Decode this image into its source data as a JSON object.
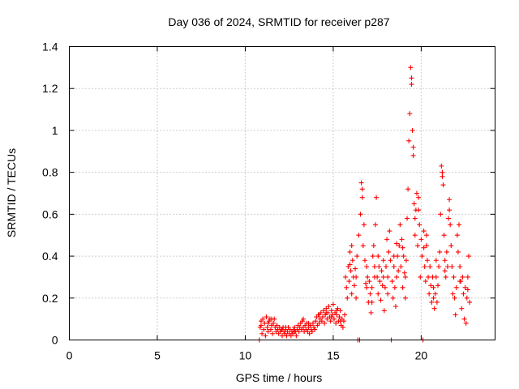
{
  "chart_data": {
    "type": "scatter",
    "title": "Day 036 of 2024, SRMTID for receiver p287",
    "xlabel": "GPS time / hours",
    "ylabel": "SRMTID / TECUs",
    "xlim": [
      0,
      24.2
    ],
    "ylim": [
      0,
      1.4
    ],
    "xticks": [
      0,
      5,
      10,
      15,
      20
    ],
    "xtick_labels": [
      "0",
      "5",
      "10",
      "15",
      "20"
    ],
    "yticks": [
      0,
      0.2,
      0.4,
      0.6,
      0.8,
      1.0,
      1.2,
      1.4
    ],
    "ytick_labels": [
      "0",
      "0.2",
      "0.4",
      "0.6",
      "0.8",
      "1",
      "1.2",
      "1.4"
    ],
    "grid": true,
    "marker": "+",
    "color": "#ff0000",
    "series": [
      {
        "name": "SRMTID",
        "points": [
          [
            10.8,
            0.0
          ],
          [
            10.85,
            0.06
          ],
          [
            10.9,
            0.09
          ],
          [
            10.95,
            0.03
          ],
          [
            11.0,
            0.1
          ],
          [
            11.05,
            0.05
          ],
          [
            11.1,
            0.08
          ],
          [
            11.15,
            0.02
          ],
          [
            11.2,
            0.11
          ],
          [
            11.25,
            0.06
          ],
          [
            11.3,
            0.04
          ],
          [
            11.35,
            0.09
          ],
          [
            11.4,
            0.1
          ],
          [
            11.45,
            0.05
          ],
          [
            11.5,
            0.07
          ],
          [
            11.55,
            0.03
          ],
          [
            11.6,
            0.08
          ],
          [
            11.65,
            0.1
          ],
          [
            11.7,
            0.06
          ],
          [
            11.75,
            0.04
          ],
          [
            11.8,
            0.07
          ],
          [
            11.85,
            0.05
          ],
          [
            11.9,
            0.03
          ],
          [
            11.95,
            0.06
          ],
          [
            12.0,
            0.04
          ],
          [
            12.05,
            0.05
          ],
          [
            12.1,
            0.02
          ],
          [
            12.15,
            0.06
          ],
          [
            12.2,
            0.04
          ],
          [
            12.25,
            0.03
          ],
          [
            12.3,
            0.05
          ],
          [
            12.35,
            0.02
          ],
          [
            12.4,
            0.04
          ],
          [
            12.45,
            0.06
          ],
          [
            12.5,
            0.03
          ],
          [
            12.55,
            0.05
          ],
          [
            12.6,
            0.02
          ],
          [
            12.65,
            0.04
          ],
          [
            12.7,
            0.03
          ],
          [
            12.75,
            0.05
          ],
          [
            12.8,
            0.06
          ],
          [
            12.85,
            0.04
          ],
          [
            12.9,
            0.02
          ],
          [
            12.95,
            0.05
          ],
          [
            13.0,
            0.07
          ],
          [
            13.05,
            0.04
          ],
          [
            13.1,
            0.06
          ],
          [
            13.15,
            0.08
          ],
          [
            13.2,
            0.05
          ],
          [
            13.25,
            0.09
          ],
          [
            13.3,
            0.06
          ],
          [
            13.35,
            0.04
          ],
          [
            13.4,
            0.07
          ],
          [
            13.45,
            0.05
          ],
          [
            13.5,
            0.08
          ],
          [
            13.55,
            0.04
          ],
          [
            13.6,
            0.06
          ],
          [
            13.65,
            0.03
          ],
          [
            13.7,
            0.07
          ],
          [
            13.75,
            0.05
          ],
          [
            13.8,
            0.04
          ],
          [
            13.85,
            0.08
          ],
          [
            13.9,
            0.06
          ],
          [
            13.95,
            0.05
          ],
          [
            14.0,
            0.09
          ],
          [
            14.05,
            0.11
          ],
          [
            14.1,
            0.07
          ],
          [
            14.15,
            0.12
          ],
          [
            14.2,
            0.08
          ],
          [
            14.25,
            0.1
          ],
          [
            14.3,
            0.13
          ],
          [
            14.35,
            0.09
          ],
          [
            14.4,
            0.11
          ],
          [
            14.45,
            0.14
          ],
          [
            14.5,
            0.08
          ],
          [
            14.55,
            0.12
          ],
          [
            14.6,
            0.15
          ],
          [
            14.65,
            0.1
          ],
          [
            14.7,
            0.13
          ],
          [
            14.75,
            0.16
          ],
          [
            14.8,
            0.11
          ],
          [
            14.85,
            0.09
          ],
          [
            14.9,
            0.14
          ],
          [
            14.95,
            0.12
          ],
          [
            15.0,
            0.17
          ],
          [
            15.05,
            0.1
          ],
          [
            15.1,
            0.13
          ],
          [
            15.15,
            0.08
          ],
          [
            15.2,
            0.12
          ],
          [
            15.25,
            0.15
          ],
          [
            15.3,
            0.09
          ],
          [
            15.35,
            0.11
          ],
          [
            15.4,
            0.14
          ],
          [
            15.45,
            0.07
          ],
          [
            15.5,
            0.1
          ],
          [
            15.55,
            0.06
          ],
          [
            15.6,
            0.09
          ],
          [
            15.65,
            0.12
          ],
          [
            15.7,
            0.3
          ],
          [
            15.75,
            0.25
          ],
          [
            15.8,
            0.2
          ],
          [
            15.85,
            0.35
          ],
          [
            15.9,
            0.28
          ],
          [
            15.95,
            0.42
          ],
          [
            16.0,
            0.33
          ],
          [
            16.05,
            0.22
          ],
          [
            16.1,
            0.38
          ],
          [
            16.15,
            0.3
          ],
          [
            16.2,
            0.26
          ],
          [
            16.25,
            0.34
          ],
          [
            16.3,
            0.2
          ],
          [
            16.35,
            0.4
          ],
          [
            16.4,
            0.0
          ],
          [
            16.45,
            0.5
          ],
          [
            16.5,
            0.0
          ],
          [
            16.55,
            0.6
          ],
          [
            16.6,
            0.75
          ],
          [
            16.65,
            0.72
          ],
          [
            16.7,
            0.45
          ],
          [
            16.75,
            0.55
          ],
          [
            16.8,
            0.38
          ],
          [
            16.85,
            0.27
          ],
          [
            16.9,
            0.35
          ],
          [
            16.95,
            0.3
          ],
          [
            17.0,
            0.18
          ],
          [
            17.05,
            0.28
          ],
          [
            17.1,
            0.22
          ],
          [
            17.15,
            0.13
          ],
          [
            17.2,
            0.25
          ],
          [
            17.25,
            0.4
          ],
          [
            17.3,
            0.45
          ],
          [
            17.35,
            0.35
          ],
          [
            17.4,
            0.55
          ],
          [
            17.45,
            0.68
          ],
          [
            17.5,
            0.3
          ],
          [
            17.55,
            0.22
          ],
          [
            17.6,
            0.35
          ],
          [
            17.65,
            0.28
          ],
          [
            17.7,
            0.19
          ],
          [
            17.75,
            0.33
          ],
          [
            17.8,
            0.26
          ],
          [
            17.85,
            0.38
          ],
          [
            17.9,
            0.14
          ],
          [
            17.95,
            0.25
          ],
          [
            18.0,
            0.35
          ],
          [
            18.05,
            0.48
          ],
          [
            18.1,
            0.3
          ],
          [
            18.15,
            0.42
          ],
          [
            18.2,
            0.52
          ],
          [
            18.25,
            0.38
          ],
          [
            18.3,
            0.0
          ],
          [
            18.35,
            0.28
          ],
          [
            18.4,
            0.2
          ],
          [
            18.45,
            0.35
          ],
          [
            18.5,
            0.25
          ],
          [
            18.55,
            0.16
          ],
          [
            18.6,
            0.3
          ],
          [
            18.65,
            0.4
          ],
          [
            18.7,
            0.33
          ],
          [
            18.75,
            0.45
          ],
          [
            18.8,
            0.55
          ],
          [
            18.85,
            0.35
          ],
          [
            18.9,
            0.48
          ],
          [
            18.95,
            0.25
          ],
          [
            19.0,
            0.4
          ],
          [
            19.05,
            0.32
          ],
          [
            19.1,
            0.2
          ],
          [
            19.15,
            0.38
          ],
          [
            19.2,
            0.58
          ],
          [
            19.25,
            0.72
          ],
          [
            19.3,
            0.95
          ],
          [
            19.35,
            1.08
          ],
          [
            19.4,
            1.3
          ],
          [
            19.45,
            1.22
          ],
          [
            19.5,
            1.0
          ],
          [
            19.55,
            0.88
          ],
          [
            19.6,
            0.65
          ],
          [
            19.65,
            0.5
          ],
          [
            19.7,
            0.62
          ],
          [
            19.75,
            0.7
          ],
          [
            19.8,
            0.45
          ],
          [
            19.85,
            0.68
          ],
          [
            19.9,
            0.55
          ],
          [
            19.95,
            0.3
          ],
          [
            20.0,
            0.48
          ],
          [
            20.05,
            0.4
          ],
          [
            20.1,
            0.0
          ],
          [
            20.15,
            0.52
          ],
          [
            20.2,
            0.35
          ],
          [
            20.25,
            0.28
          ],
          [
            20.3,
            0.45
          ],
          [
            20.35,
            0.38
          ],
          [
            20.4,
            0.3
          ],
          [
            20.45,
            0.22
          ],
          [
            20.5,
            0.35
          ],
          [
            20.55,
            0.26
          ],
          [
            20.6,
            0.18
          ],
          [
            20.65,
            0.3
          ],
          [
            20.7,
            0.25
          ],
          [
            20.75,
            0.15
          ],
          [
            20.8,
            0.22
          ],
          [
            20.85,
            0.3
          ],
          [
            20.9,
            0.18
          ],
          [
            20.95,
            0.26
          ],
          [
            21.0,
            0.35
          ],
          [
            21.05,
            0.42
          ],
          [
            21.1,
            0.6
          ],
          [
            21.15,
            0.83
          ],
          [
            21.2,
            0.8
          ],
          [
            21.25,
            0.74
          ],
          [
            21.3,
            0.5
          ],
          [
            21.35,
            0.38
          ],
          [
            21.4,
            0.3
          ],
          [
            21.45,
            0.42
          ],
          [
            21.5,
            0.35
          ],
          [
            21.55,
            0.58
          ],
          [
            21.6,
            0.67
          ],
          [
            21.65,
            0.55
          ],
          [
            21.7,
            0.45
          ],
          [
            21.75,
            0.35
          ],
          [
            21.8,
            0.22
          ],
          [
            21.85,
            0.3
          ],
          [
            21.9,
            0.2
          ],
          [
            21.95,
            0.12
          ],
          [
            22.0,
            0.25
          ],
          [
            22.05,
            0.5
          ],
          [
            22.1,
            0.42
          ],
          [
            22.15,
            0.55
          ],
          [
            22.2,
            0.35
          ],
          [
            22.25,
            0.28
          ],
          [
            22.3,
            0.15
          ],
          [
            22.35,
            0.3
          ],
          [
            22.4,
            0.22
          ],
          [
            22.45,
            0.1
          ],
          [
            22.5,
            0.25
          ],
          [
            22.55,
            0.08
          ],
          [
            22.6,
            0.2
          ],
          [
            22.65,
            0.3
          ],
          [
            22.7,
            0.4
          ],
          [
            22.75,
            0.18
          ],
          [
            11.5,
            0.1
          ],
          [
            12.3,
            0.06
          ],
          [
            13.3,
            0.1
          ],
          [
            14.6,
            0.13
          ],
          [
            15.2,
            0.14
          ],
          [
            16.05,
            0.45
          ],
          [
            16.65,
            0.68
          ],
          [
            17.2,
            0.18
          ],
          [
            17.55,
            0.4
          ],
          [
            18.1,
            0.22
          ],
          [
            18.6,
            0.46
          ],
          [
            18.95,
            0.44
          ],
          [
            19.45,
            1.25
          ],
          [
            19.55,
            0.92
          ],
          [
            19.85,
            0.62
          ],
          [
            20.3,
            0.5
          ],
          [
            20.85,
            0.38
          ],
          [
            21.2,
            0.78
          ],
          [
            21.6,
            0.62
          ],
          [
            22.2,
            0.28
          ],
          [
            10.9,
            0.07
          ],
          [
            11.3,
            0.08
          ],
          [
            12.1,
            0.05
          ],
          [
            12.8,
            0.04
          ],
          [
            13.6,
            0.08
          ],
          [
            14.2,
            0.12
          ],
          [
            14.9,
            0.11
          ],
          [
            15.4,
            0.09
          ],
          [
            15.95,
            0.36
          ],
          [
            16.3,
            0.3
          ],
          [
            16.9,
            0.25
          ],
          [
            17.35,
            0.3
          ],
          [
            17.85,
            0.3
          ],
          [
            18.45,
            0.4
          ],
          [
            19.1,
            0.3
          ],
          [
            19.65,
            0.58
          ],
          [
            20.15,
            0.44
          ],
          [
            20.7,
            0.2
          ],
          [
            21.35,
            0.33
          ],
          [
            22.65,
            0.24
          ]
        ]
      }
    ]
  }
}
